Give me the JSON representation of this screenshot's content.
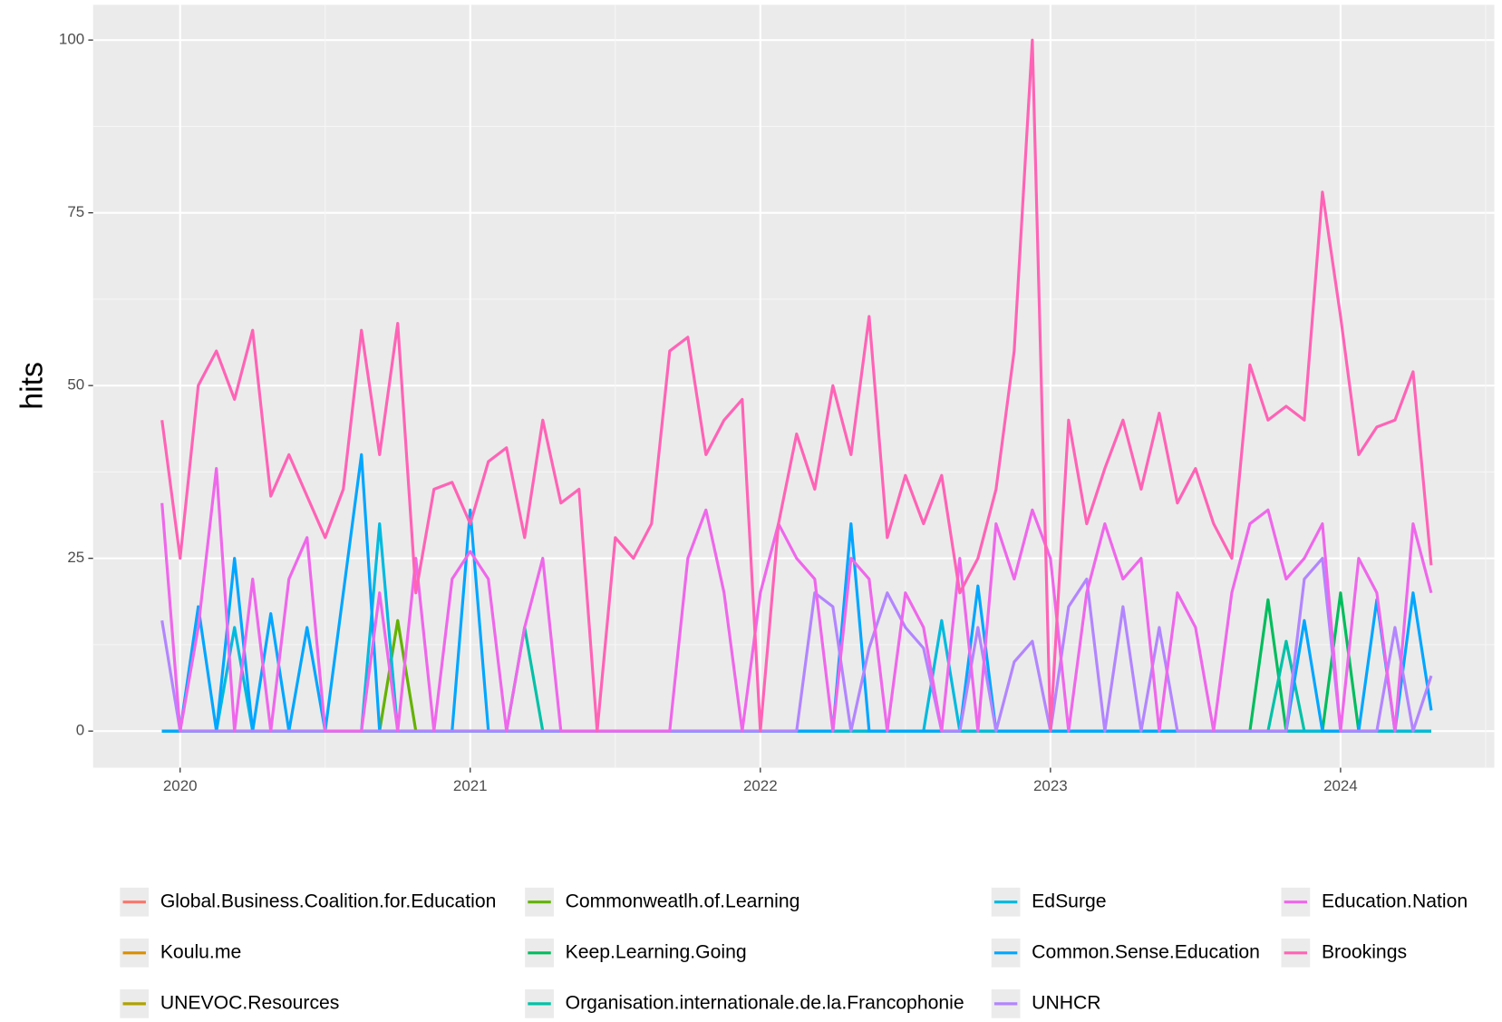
{
  "chart_data": {
    "type": "line",
    "y_label": "hits",
    "legend": "bottom",
    "grid": true,
    "xlim": [
      2019.7,
      2024.53
    ],
    "xticks": [
      2020,
      2021,
      2022,
      2023,
      2024
    ],
    "ylim": [
      -5.3,
      105.1
    ],
    "yticks": [
      0,
      25,
      50,
      75,
      100
    ],
    "x": [
      2019.9375,
      2020,
      2020.0625,
      2020.125,
      2020.1875,
      2020.25,
      2020.3125,
      2020.375,
      2020.4375,
      2020.5,
      2020.5625,
      2020.625,
      2020.6875,
      2020.75,
      2020.8125,
      2020.875,
      2020.9375,
      2021,
      2021.0625,
      2021.125,
      2021.1875,
      2021.25,
      2021.3125,
      2021.375,
      2021.4375,
      2021.5,
      2021.5625,
      2021.625,
      2021.6875,
      2021.75,
      2021.8125,
      2021.875,
      2021.9375,
      2022,
      2022.0625,
      2022.125,
      2022.1875,
      2022.25,
      2022.3125,
      2022.375,
      2022.4375,
      2022.5,
      2022.5625,
      2022.625,
      2022.6875,
      2022.75,
      2022.8125,
      2022.875,
      2022.9375,
      2023,
      2023.0625,
      2023.125,
      2023.1875,
      2023.25,
      2023.3125,
      2023.375,
      2023.4375,
      2023.5,
      2023.5625,
      2023.625,
      2023.6875,
      2023.75,
      2023.8125,
      2023.875,
      2023.9375,
      2024,
      2024.0625,
      2024.125,
      2024.1875,
      2024.25,
      2024.3125
    ],
    "series": [
      {
        "name": "Global.Business.Coalition.for.Education",
        "color": "#F8766D",
        "values": [
          0,
          0,
          0,
          0,
          0,
          0,
          0,
          0,
          0,
          0,
          0,
          0,
          0,
          0,
          0,
          0,
          0,
          0,
          0,
          0,
          0,
          0,
          0,
          0,
          0,
          0,
          0,
          0,
          0,
          0,
          0,
          0,
          0,
          0,
          0,
          0,
          0,
          0,
          0,
          0,
          0,
          0,
          0,
          0,
          0,
          0,
          0,
          0,
          0,
          0,
          0,
          0,
          0,
          0,
          0,
          0,
          0,
          0,
          0,
          0,
          0,
          0,
          0,
          0,
          0,
          0,
          0,
          0,
          0,
          0,
          0
        ]
      },
      {
        "name": "Koulu.me",
        "color": "#DB8E00",
        "values": [
          0,
          0,
          0,
          0,
          0,
          0,
          0,
          0,
          0,
          0,
          0,
          0,
          0,
          0,
          0,
          0,
          0,
          0,
          0,
          0,
          0,
          0,
          0,
          0,
          0,
          0,
          0,
          0,
          0,
          0,
          0,
          0,
          0,
          0,
          0,
          0,
          0,
          0,
          0,
          0,
          0,
          0,
          0,
          0,
          0,
          0,
          0,
          0,
          0,
          0,
          0,
          0,
          0,
          0,
          0,
          0,
          0,
          0,
          0,
          0,
          0,
          0,
          0,
          0,
          0,
          0,
          0,
          0,
          0,
          0,
          0
        ]
      },
      {
        "name": "UNEVOC.Resources",
        "color": "#AEA200",
        "values": [
          0,
          0,
          0,
          0,
          0,
          0,
          0,
          0,
          0,
          0,
          0,
          0,
          0,
          0,
          0,
          0,
          0,
          0,
          0,
          0,
          0,
          0,
          0,
          0,
          0,
          0,
          0,
          0,
          0,
          0,
          0,
          0,
          0,
          0,
          0,
          0,
          0,
          0,
          0,
          0,
          0,
          0,
          0,
          0,
          0,
          0,
          0,
          0,
          0,
          0,
          0,
          0,
          0,
          0,
          0,
          0,
          0,
          0,
          0,
          0,
          0,
          0,
          0,
          0,
          0,
          0,
          0,
          0,
          0,
          0,
          0
        ]
      },
      {
        "name": "Commonweatlh.of.Learning",
        "color": "#64B200",
        "values": [
          0,
          0,
          0,
          0,
          0,
          0,
          0,
          0,
          0,
          0,
          0,
          0,
          0,
          16,
          0,
          0,
          0,
          0,
          0,
          0,
          0,
          0,
          0,
          0,
          0,
          0,
          0,
          0,
          0,
          0,
          0,
          0,
          0,
          0,
          0,
          0,
          0,
          0,
          0,
          0,
          0,
          0,
          0,
          0,
          0,
          0,
          0,
          0,
          0,
          0,
          0,
          0,
          0,
          0,
          0,
          0,
          0,
          0,
          0,
          0,
          0,
          0,
          0,
          0,
          0,
          0,
          0,
          0,
          0,
          0,
          0
        ]
      },
      {
        "name": "Keep.Learning.Going",
        "color": "#00BD5C",
        "values": [
          0,
          0,
          0,
          0,
          0,
          0,
          0,
          0,
          0,
          0,
          0,
          0,
          0,
          0,
          0,
          0,
          0,
          0,
          0,
          0,
          0,
          0,
          0,
          0,
          0,
          0,
          0,
          0,
          0,
          0,
          0,
          0,
          0,
          0,
          0,
          0,
          0,
          0,
          0,
          0,
          0,
          0,
          0,
          0,
          0,
          0,
          0,
          0,
          0,
          0,
          0,
          0,
          0,
          0,
          0,
          0,
          0,
          0,
          0,
          0,
          0,
          19,
          0,
          0,
          0,
          20,
          0,
          0,
          0,
          0,
          0
        ]
      },
      {
        "name": "Organisation.internationale.de.la.Francophonie",
        "color": "#00C1A7",
        "values": [
          0,
          0,
          0,
          0,
          0,
          0,
          0,
          0,
          0,
          0,
          0,
          0,
          0,
          0,
          0,
          0,
          0,
          0,
          0,
          0,
          15,
          0,
          0,
          0,
          0,
          0,
          0,
          0,
          0,
          0,
          0,
          0,
          0,
          0,
          0,
          0,
          0,
          0,
          0,
          0,
          0,
          0,
          0,
          0,
          0,
          0,
          0,
          0,
          0,
          0,
          0,
          0,
          0,
          0,
          0,
          0,
          0,
          0,
          0,
          0,
          0,
          0,
          13,
          0,
          0,
          0,
          0,
          0,
          0,
          0,
          0
        ]
      },
      {
        "name": "EdSurge",
        "color": "#00BADE",
        "values": [
          0,
          0,
          0,
          0,
          15,
          0,
          0,
          0,
          0,
          0,
          0,
          0,
          30,
          0,
          0,
          0,
          0,
          0,
          0,
          0,
          0,
          0,
          0,
          0,
          0,
          0,
          0,
          0,
          0,
          0,
          0,
          0,
          0,
          0,
          0,
          0,
          0,
          0,
          0,
          0,
          0,
          0,
          0,
          16,
          0,
          0,
          0,
          0,
          0,
          0,
          0,
          0,
          0,
          0,
          0,
          0,
          0,
          0,
          0,
          0,
          0,
          0,
          0,
          0,
          0,
          0,
          0,
          0,
          0,
          0,
          0
        ]
      },
      {
        "name": "Common.Sense.Education",
        "color": "#00A6FF",
        "values": [
          0,
          0,
          18,
          0,
          25,
          0,
          17,
          0,
          15,
          0,
          20,
          40,
          0,
          0,
          0,
          0,
          0,
          32,
          0,
          0,
          0,
          0,
          0,
          0,
          0,
          0,
          0,
          0,
          0,
          0,
          0,
          0,
          0,
          0,
          0,
          0,
          0,
          0,
          30,
          0,
          0,
          0,
          0,
          0,
          0,
          21,
          0,
          0,
          0,
          0,
          0,
          0,
          0,
          0,
          0,
          0,
          0,
          0,
          0,
          0,
          0,
          0,
          0,
          16,
          0,
          0,
          0,
          19,
          0,
          20,
          3
        ]
      },
      {
        "name": "UNHCR",
        "color": "#B385FF",
        "values": [
          16,
          0,
          0,
          0,
          0,
          0,
          0,
          0,
          0,
          0,
          0,
          0,
          0,
          0,
          0,
          0,
          0,
          0,
          0,
          0,
          0,
          0,
          0,
          0,
          0,
          0,
          0,
          0,
          0,
          0,
          0,
          0,
          0,
          0,
          0,
          0,
          20,
          18,
          0,
          12,
          20,
          15,
          12,
          0,
          0,
          15,
          0,
          10,
          13,
          0,
          18,
          22,
          0,
          18,
          0,
          15,
          0,
          0,
          0,
          0,
          0,
          0,
          0,
          22,
          25,
          0,
          0,
          0,
          15,
          0,
          8
        ]
      },
      {
        "name": "Education.Nation",
        "color": "#EF67EB",
        "values": [
          33,
          0,
          15,
          38,
          0,
          22,
          0,
          22,
          28,
          0,
          0,
          0,
          20,
          0,
          25,
          0,
          22,
          26,
          22,
          0,
          15,
          25,
          0,
          0,
          0,
          0,
          0,
          0,
          0,
          25,
          32,
          20,
          0,
          20,
          30,
          25,
          22,
          0,
          25,
          22,
          0,
          20,
          15,
          0,
          25,
          0,
          30,
          22,
          32,
          25,
          0,
          20,
          30,
          22,
          25,
          0,
          20,
          15,
          0,
          20,
          30,
          32,
          22,
          25,
          30,
          0,
          25,
          20,
          0,
          30,
          20
        ]
      },
      {
        "name": "Brookings",
        "color": "#FF63B6",
        "values": [
          45,
          25,
          50,
          55,
          48,
          58,
          34,
          40,
          34,
          28,
          35,
          58,
          40,
          59,
          20,
          35,
          36,
          30,
          39,
          41,
          28,
          45,
          33,
          35,
          0,
          28,
          25,
          30,
          55,
          57,
          40,
          45,
          48,
          0,
          30,
          43,
          35,
          50,
          40,
          60,
          28,
          37,
          30,
          37,
          20,
          25,
          35,
          55,
          100,
          0,
          45,
          30,
          38,
          45,
          35,
          46,
          33,
          38,
          30,
          25,
          53,
          45,
          47,
          45,
          78,
          60,
          40,
          44,
          45,
          52,
          24
        ]
      }
    ]
  }
}
